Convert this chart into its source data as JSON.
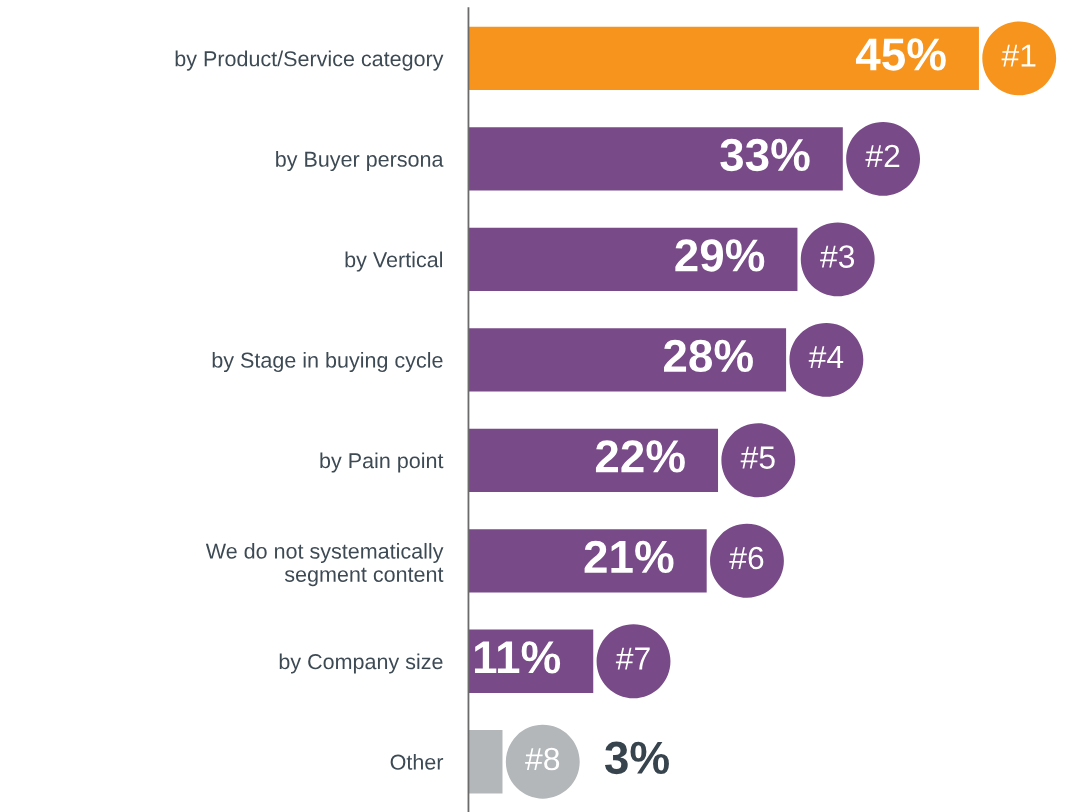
{
  "chart_data": {
    "type": "bar",
    "orientation": "horizontal",
    "categories": [
      "by Product/Service category",
      "by Buyer persona",
      "by Vertical",
      "by Stage in buying cycle",
      "by Pain point",
      "We do not systematically\nsegment content",
      "by Company size",
      "Other"
    ],
    "values": [
      45,
      33,
      29,
      28,
      22,
      21,
      11,
      3
    ],
    "colors": [
      "#f7941d",
      "#784a87",
      "#784a87",
      "#784a87",
      "#784a87",
      "#784a87",
      "#784a87",
      "#b3b7ba"
    ],
    "value_labels": [
      "45%",
      "33%",
      "29%",
      "28%",
      "22%",
      "21%",
      "11%",
      "3%"
    ],
    "annotations": [
      {
        "text": "#1",
        "x": 45,
        "y": "by Product/Service category"
      },
      {
        "text": "#2",
        "x": 33,
        "y": "by Buyer persona"
      },
      {
        "text": "#3",
        "x": 29,
        "y": "by Vertical"
      },
      {
        "text": "#4",
        "x": 28,
        "y": "by Stage in buying cycle"
      },
      {
        "text": "#5",
        "x": 22,
        "y": "by Pain point"
      },
      {
        "text": "#6",
        "x": 21,
        "y": "We do not systematically\nsegment content"
      },
      {
        "text": "#7",
        "x": 11,
        "y": "by Company size"
      },
      {
        "text": "#8",
        "x": 3,
        "y": "Other"
      }
    ],
    "tick_labels": "y"
  }
}
